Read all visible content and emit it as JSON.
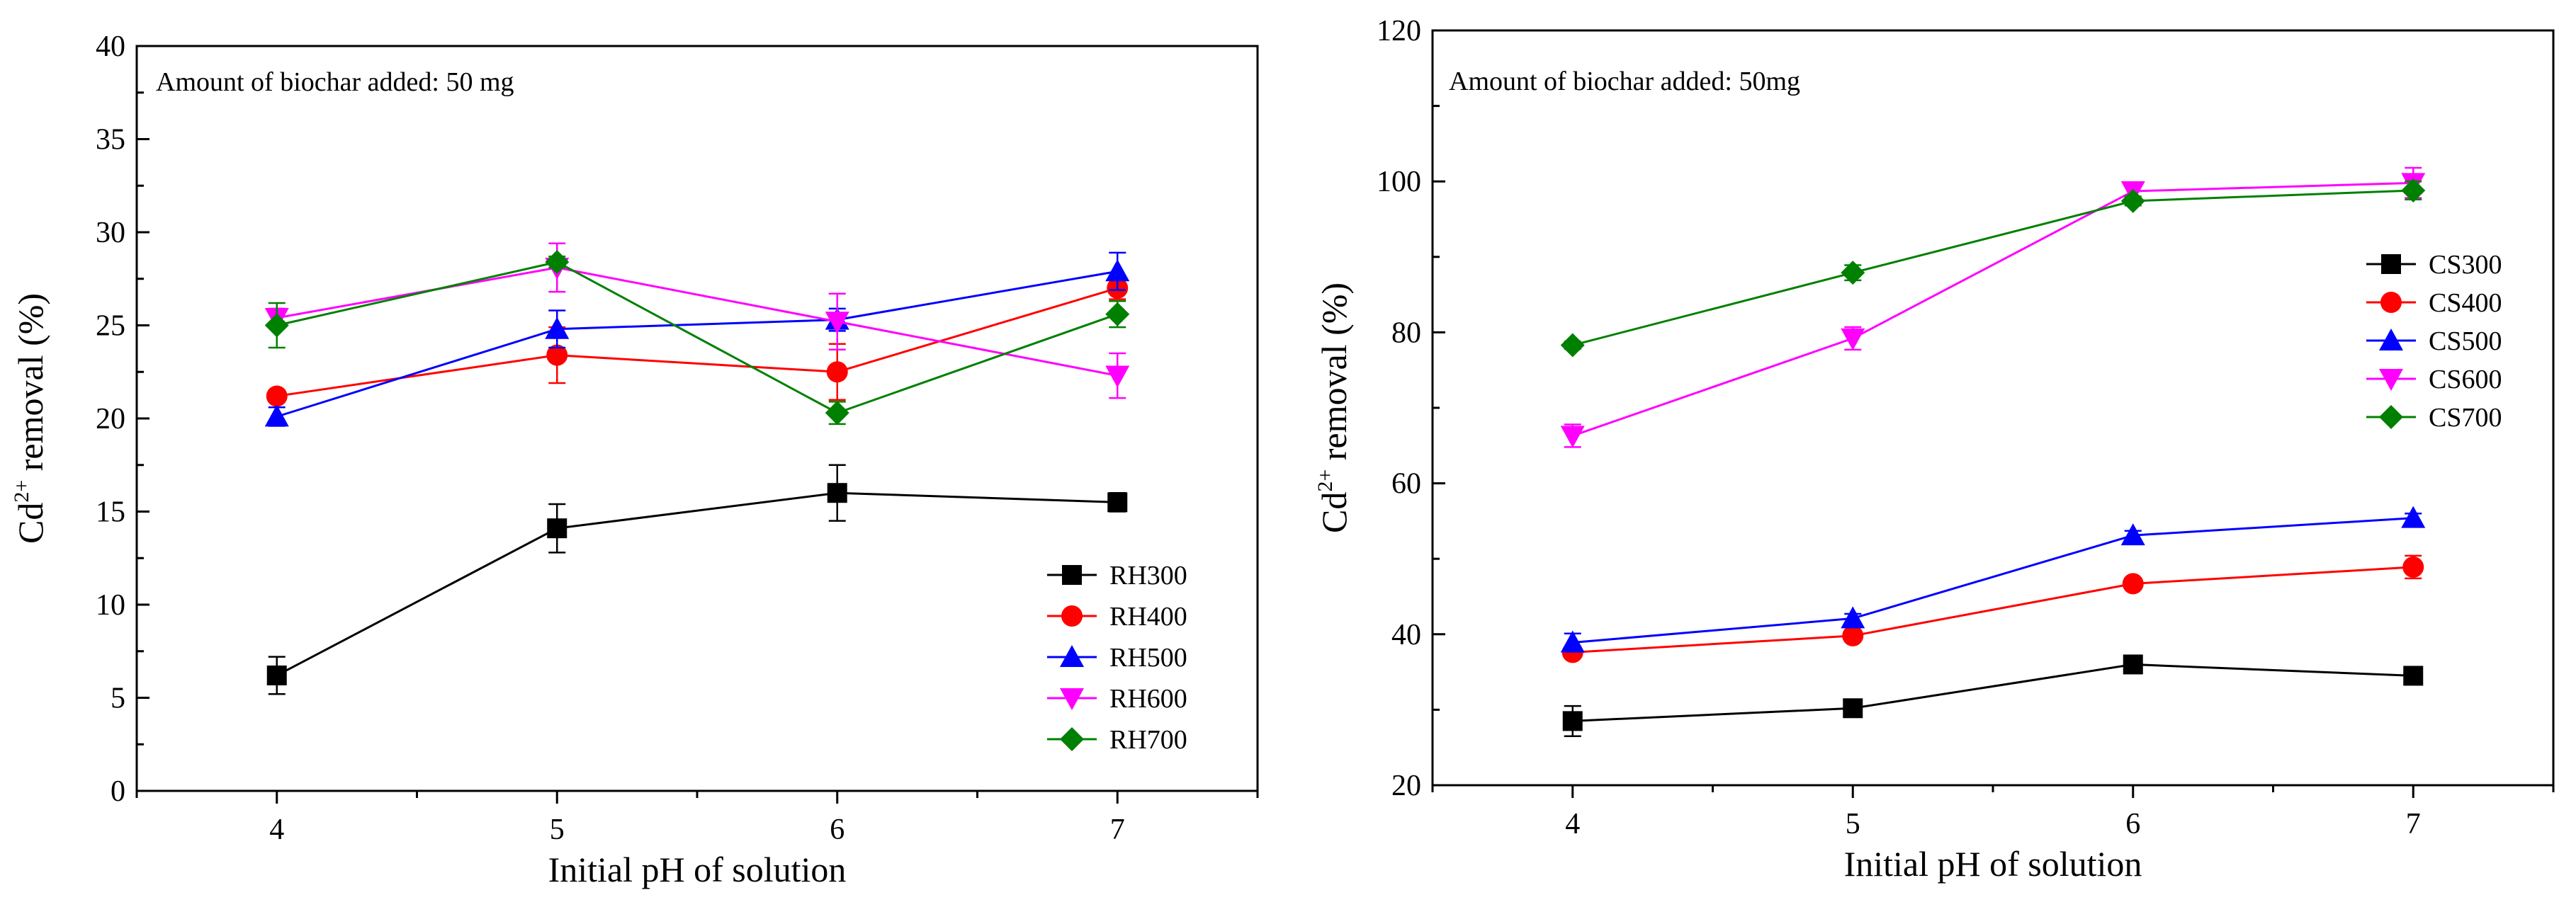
{
  "chart_data": [
    {
      "type": "line",
      "title": "",
      "annotation": "Amount of biochar added:   50 mg",
      "xlabel": "Initial pH of solution",
      "ylabel_prefix": "Cd",
      "ylabel_sup": "2+",
      "ylabel_suffix": " removal (%)",
      "x": [
        4,
        5,
        6,
        7
      ],
      "xlim": [
        3.5,
        7.5
      ],
      "ylim": [
        0,
        40
      ],
      "xticks": [
        4,
        5,
        6,
        7
      ],
      "yticks": [
        0,
        5,
        10,
        15,
        20,
        25,
        30,
        35,
        40
      ],
      "legend_position": "bottom-right",
      "series": [
        {
          "name": "RH300",
          "color": "#000000",
          "marker": "square",
          "values": [
            6.2,
            14.1,
            16.0,
            15.5
          ],
          "errors": [
            1.0,
            1.3,
            1.5,
            0.5
          ]
        },
        {
          "name": "RH400",
          "color": "#ff0000",
          "marker": "circle",
          "values": [
            21.2,
            23.4,
            22.5,
            27.0
          ],
          "errors": [
            0.3,
            1.5,
            1.5,
            0.6
          ]
        },
        {
          "name": "RH500",
          "color": "#0000ff",
          "marker": "triangle-up",
          "values": [
            20.1,
            24.8,
            25.3,
            27.9
          ],
          "errors": [
            0.5,
            1.0,
            0.6,
            1.0
          ]
        },
        {
          "name": "RH600",
          "color": "#ff00ff",
          "marker": "triangle-down",
          "values": [
            25.4,
            28.1,
            25.2,
            22.3
          ],
          "errors": [
            0.5,
            1.3,
            1.5,
            1.2
          ]
        },
        {
          "name": "RH700",
          "color": "#008000",
          "marker": "diamond",
          "values": [
            25.0,
            28.4,
            20.3,
            25.6
          ],
          "errors": [
            1.2,
            0.3,
            0.6,
            0.7
          ]
        }
      ]
    },
    {
      "type": "line",
      "title": "",
      "annotation": "Amount of biochar added:   50mg",
      "xlabel": "Initial pH of solution",
      "ylabel_prefix": "Cd",
      "ylabel_sup": "2+",
      "ylabel_suffix": " removal (%)",
      "x": [
        4,
        5,
        6,
        7
      ],
      "xlim": [
        3.5,
        7.5
      ],
      "ylim": [
        20,
        120
      ],
      "xticks": [
        4,
        5,
        6,
        7
      ],
      "yticks": [
        20,
        40,
        60,
        80,
        100,
        120
      ],
      "legend_position": "top-right",
      "series": [
        {
          "name": "CS300",
          "color": "#000000",
          "marker": "square",
          "values": [
            28.5,
            30.2,
            36.0,
            34.5
          ],
          "errors": [
            2.0,
            1.0,
            0.6,
            0.6
          ]
        },
        {
          "name": "CS400",
          "color": "#ff0000",
          "marker": "circle",
          "values": [
            37.6,
            39.8,
            46.7,
            48.9
          ],
          "errors": [
            0.5,
            0.6,
            0.6,
            1.5
          ]
        },
        {
          "name": "CS500",
          "color": "#0000ff",
          "marker": "triangle-up",
          "values": [
            38.9,
            42.1,
            53.1,
            55.4
          ],
          "errors": [
            1.2,
            0.6,
            0.6,
            0.6
          ]
        },
        {
          "name": "CS600",
          "color": "#ff00ff",
          "marker": "triangle-down",
          "values": [
            66.3,
            79.2,
            98.7,
            99.8
          ],
          "errors": [
            1.5,
            1.5,
            0.8,
            2.0
          ]
        },
        {
          "name": "CS700",
          "color": "#008000",
          "marker": "diamond",
          "values": [
            78.3,
            87.9,
            97.4,
            98.8
          ],
          "errors": [
            0.5,
            1.0,
            0.6,
            1.2
          ]
        }
      ]
    }
  ]
}
